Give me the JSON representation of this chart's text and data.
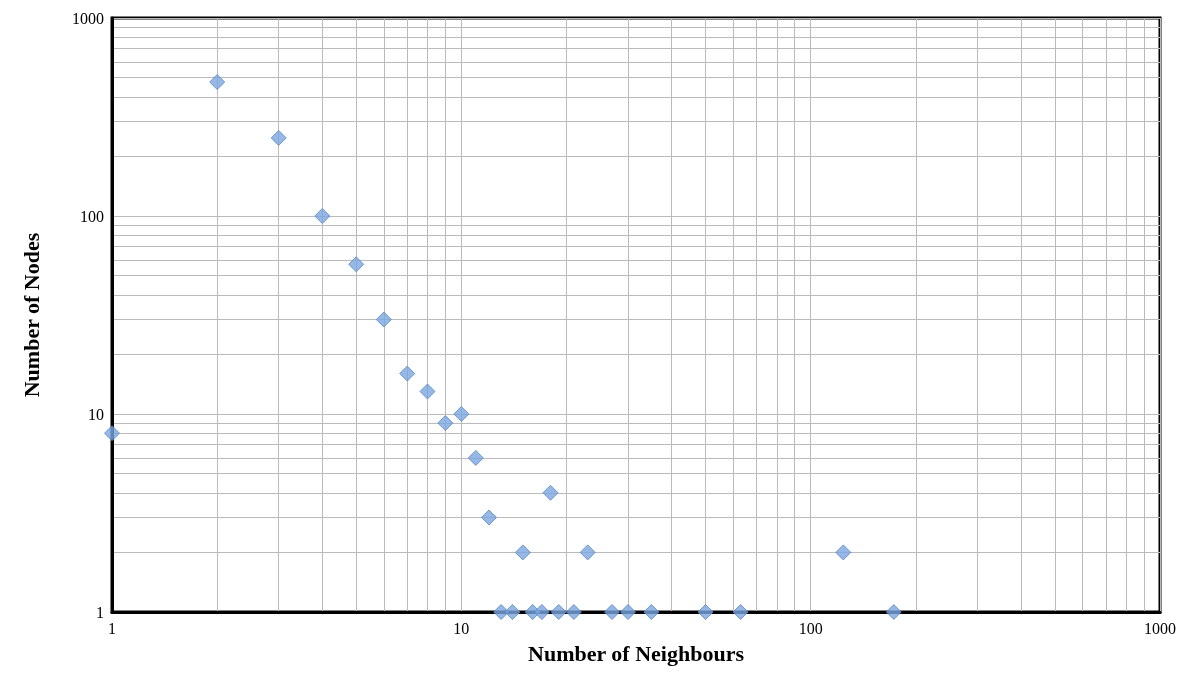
{
  "chart_data": {
    "type": "scatter",
    "xlabel": "Number of Neighbours",
    "ylabel": "Number of Nodes",
    "log": "xy",
    "grid": true,
    "marker": "diamond",
    "xlim": [
      1,
      1000
    ],
    "xticks": [
      1,
      10,
      100,
      1000
    ],
    "ylim": [
      1,
      1000
    ],
    "yticks": [
      1,
      10,
      100,
      1000
    ],
    "series": [
      {
        "color": "#7aa6e0",
        "x": [
          1,
          2,
          3,
          4,
          5,
          6,
          7,
          8,
          9,
          10,
          11,
          12,
          13,
          14,
          15,
          16,
          17,
          18,
          19,
          21,
          23,
          27,
          30,
          35,
          50,
          63,
          124,
          173
        ],
        "values": [
          8,
          475,
          248,
          100,
          57,
          30,
          16,
          13,
          9,
          10,
          6,
          3,
          1,
          1,
          2,
          1,
          1,
          4,
          1,
          1,
          2,
          1,
          1,
          1,
          1,
          1,
          2,
          1
        ]
      }
    ]
  }
}
